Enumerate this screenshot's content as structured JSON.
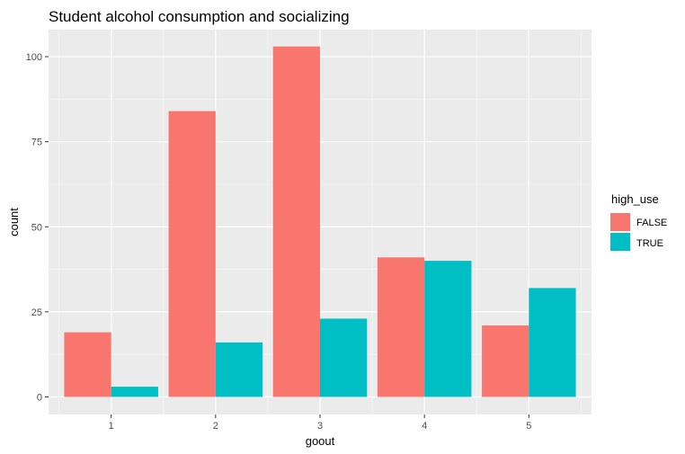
{
  "chart_data": {
    "type": "bar",
    "title": "Student alcohol consumption and socializing",
    "xlabel": "goout",
    "ylabel": "count",
    "categories": [
      "1",
      "2",
      "3",
      "4",
      "5"
    ],
    "series": [
      {
        "name": "FALSE",
        "color": "#F8766D",
        "values": [
          19,
          84,
          103,
          41,
          21
        ]
      },
      {
        "name": "TRUE",
        "color": "#00BFC4",
        "values": [
          3,
          16,
          23,
          40,
          32
        ]
      }
    ],
    "ylim": [
      0,
      108
    ],
    "yticks": [
      0,
      25,
      50,
      75,
      100
    ],
    "grid": true,
    "legend": {
      "title": "high_use",
      "position": "right"
    }
  }
}
